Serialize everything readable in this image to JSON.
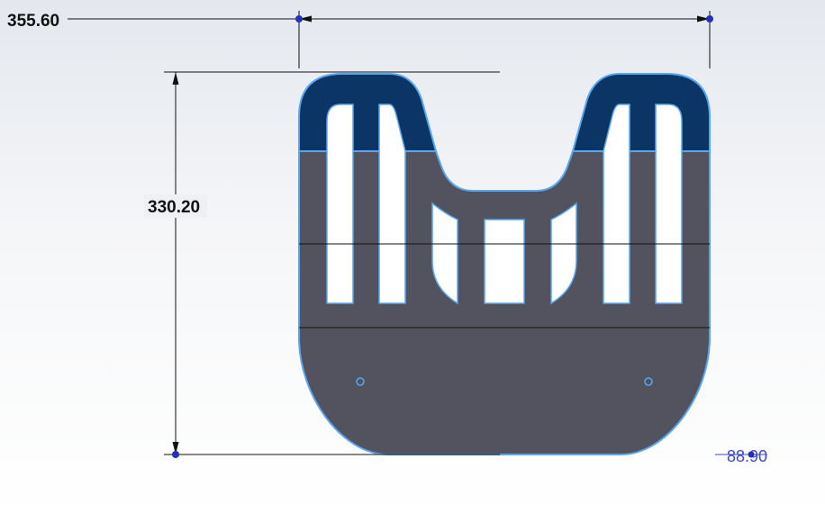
{
  "dimensions": {
    "width": "355.60",
    "height": "330.20",
    "depth": "88.90"
  },
  "colors": {
    "part_fill": "#52535e",
    "cap_fill": "#0a3565",
    "edge": "#5aa6ee",
    "dimension_line": "#111111",
    "dimension_point": "#2232b8"
  }
}
